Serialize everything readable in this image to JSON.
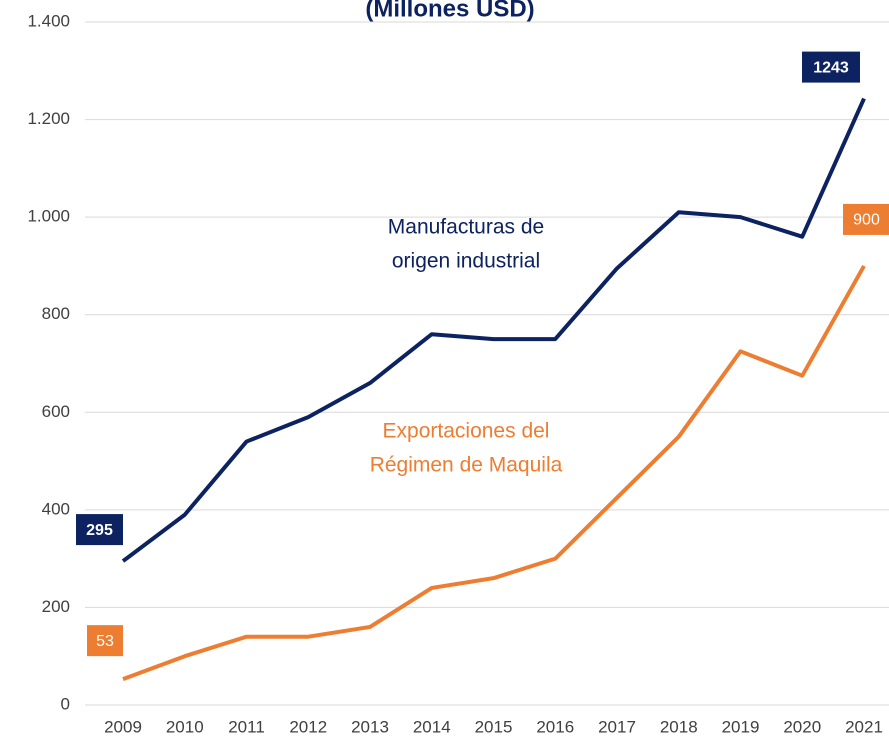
{
  "chart_data": {
    "type": "line",
    "title": "(Millones USD)",
    "categories": [
      "2009",
      "2010",
      "2011",
      "2012",
      "2013",
      "2014",
      "2015",
      "2016",
      "2017",
      "2018",
      "2019",
      "2020",
      "2021"
    ],
    "series": [
      {
        "name": "Manufacturas de origen industrial",
        "color": "#0d2261",
        "annotation": [
          "Manufacturas de",
          "origen industrial"
        ],
        "values": [
          295,
          390,
          540,
          590,
          660,
          760,
          750,
          750,
          895,
          1010,
          1000,
          960,
          1243
        ],
        "value_labels": [
          "295",
          null,
          null,
          null,
          null,
          null,
          null,
          null,
          null,
          null,
          null,
          null,
          "1243"
        ]
      },
      {
        "name": "Exportaciones del Régimen de Maquila",
        "color": "#ed7d31",
        "annotation": [
          "Exportaciones del",
          "Régimen de Maquila"
        ],
        "values": [
          53,
          100,
          140,
          140,
          160,
          240,
          260,
          300,
          425,
          550,
          725,
          675,
          900
        ],
        "value_labels": [
          "53",
          null,
          null,
          null,
          null,
          null,
          null,
          null,
          null,
          null,
          null,
          null,
          "900"
        ]
      }
    ],
    "ylim": [
      0,
      1400
    ],
    "yticks": [
      0,
      200,
      400,
      600,
      800,
      {
        "value": 1000,
        "label": "1.000"
      },
      {
        "value": 1200,
        "label": "1.200"
      },
      {
        "value": 1400,
        "label": "1.400"
      }
    ],
    "grid": true
  }
}
